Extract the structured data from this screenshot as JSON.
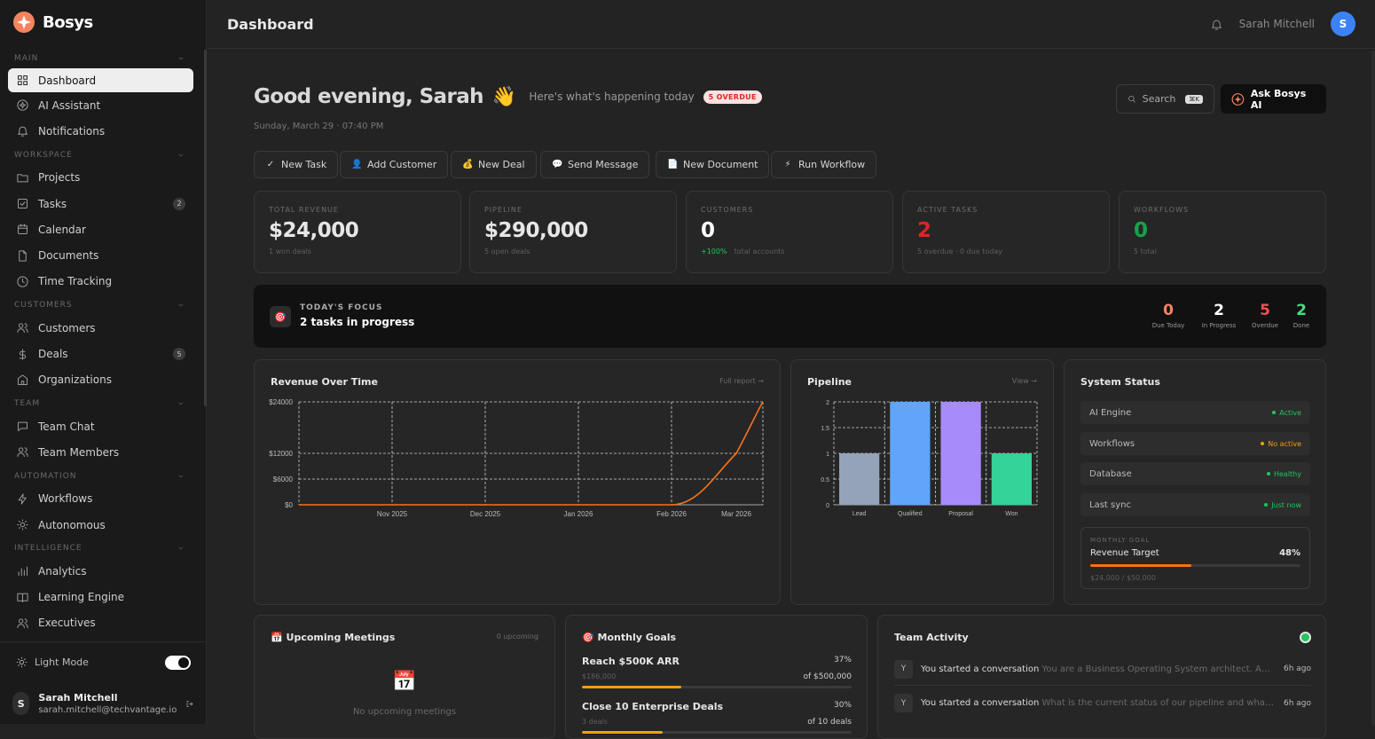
{
  "app": {
    "name": "Bosys"
  },
  "sidebar": {
    "sections": [
      {
        "label": "MAIN",
        "items": [
          {
            "label": "Dashboard",
            "icon": "grid-icon",
            "active": true
          },
          {
            "label": "AI Assistant",
            "icon": "ai-icon"
          },
          {
            "label": "Notifications",
            "icon": "bell-icon"
          }
        ]
      },
      {
        "label": "WORKSPACE",
        "items": [
          {
            "label": "Projects",
            "icon": "folder-icon"
          },
          {
            "label": "Tasks",
            "icon": "task-icon",
            "badge": "2"
          },
          {
            "label": "Calendar",
            "icon": "calendar-icon"
          },
          {
            "label": "Documents",
            "icon": "document-icon"
          },
          {
            "label": "Time Tracking",
            "icon": "clock-icon"
          }
        ]
      },
      {
        "label": "CUSTOMERS",
        "items": [
          {
            "label": "Customers",
            "icon": "users-icon"
          },
          {
            "label": "Deals",
            "icon": "dollar-icon",
            "badge": "5"
          },
          {
            "label": "Organizations",
            "icon": "building-icon"
          }
        ]
      },
      {
        "label": "TEAM",
        "items": [
          {
            "label": "Team Chat",
            "icon": "chat-icon"
          },
          {
            "label": "Team Members",
            "icon": "users-icon"
          }
        ]
      },
      {
        "label": "AUTOMATION",
        "items": [
          {
            "label": "Workflows",
            "icon": "bolt-icon"
          },
          {
            "label": "Autonomous",
            "icon": "sun-icon"
          }
        ]
      },
      {
        "label": "INTELLIGENCE",
        "items": [
          {
            "label": "Analytics",
            "icon": "chart-icon"
          },
          {
            "label": "Learning Engine",
            "icon": "book-icon"
          },
          {
            "label": "Executives",
            "icon": "users-icon"
          }
        ]
      }
    ],
    "light_mode_label": "Light Mode",
    "user": {
      "initial": "S",
      "name": "Sarah Mitchell",
      "email": "sarah.mitchell@techvantage.io"
    }
  },
  "header": {
    "title": "Dashboard",
    "user_name": "Sarah Mitchell",
    "avatar_initial": "S"
  },
  "greeting": {
    "title": "Good evening, Sarah",
    "emoji": "👋",
    "subtitle": "Here's what's happening today",
    "overdue_pill": "5 OVERDUE",
    "date": "Sunday, March 29 · 07:40 PM"
  },
  "search": {
    "label": "Search",
    "shortcut": "⌘K"
  },
  "ask_ai": {
    "label": "Ask Bosys AI"
  },
  "quick_actions": [
    {
      "label": "New Task",
      "glyph": "✓"
    },
    {
      "label": "Add Customer",
      "glyph": "👤"
    },
    {
      "label": "New Deal",
      "glyph": "💰"
    },
    {
      "label": "Send Message",
      "glyph": "💬"
    },
    {
      "label": "New Document",
      "glyph": "📄"
    },
    {
      "label": "Run Workflow",
      "glyph": "⚡"
    }
  ],
  "stats": [
    {
      "label": "TOTAL REVENUE",
      "value": "$24,000",
      "sub": "1 won deals",
      "color": "#e6e6e6"
    },
    {
      "label": "PIPELINE",
      "value": "$290,000",
      "sub": "5 open deals",
      "color": "#e6e6e6"
    },
    {
      "label": "CUSTOMERS",
      "value": "0",
      "delta": "+100%",
      "sub": "total accounts",
      "color": "#ffffff"
    },
    {
      "label": "ACTIVE TASKS",
      "value": "2",
      "sub": "5 overdue · 0 due today",
      "color": "#dc2626"
    },
    {
      "label": "WORKFLOWS",
      "value": "0",
      "sub": "5 total",
      "color": "#16a34a"
    }
  ],
  "focus": {
    "label": "TODAY'S FOCUS",
    "title": "2 tasks in progress",
    "stats": [
      {
        "value": "0",
        "label": "Due Today",
        "color": "#f4845f"
      },
      {
        "value": "2",
        "label": "In Progress",
        "color": "#ffffff"
      },
      {
        "value": "5",
        "label": "Overdue",
        "color": "#f05252"
      },
      {
        "value": "2",
        "label": "Done",
        "color": "#4ade80"
      }
    ]
  },
  "revenue_card": {
    "title": "Revenue Over Time",
    "link": "Full report →"
  },
  "pipeline_card": {
    "title": "Pipeline",
    "link": "View →"
  },
  "chart_data": [
    {
      "type": "line",
      "x_ticks": [
        "Nov 2025",
        "Dec 2025",
        "Jan 2026",
        "Feb 2026",
        "Mar 2026"
      ],
      "y_ticks": [
        "$0",
        "$6000",
        "$12000",
        "$24000"
      ],
      "ylim": [
        0,
        24000
      ],
      "series": [
        {
          "color": "#f97316",
          "points": [
            [
              "Oct 2025",
              0
            ],
            [
              "Nov 2025",
              0
            ],
            [
              "Dec 2025",
              0
            ],
            [
              "Jan 2026",
              0
            ],
            [
              "Feb 2026",
              0
            ],
            [
              "Mar 2026",
              12000
            ],
            [
              "Mar 29 2026",
              24000
            ]
          ]
        }
      ],
      "grid": true
    },
    {
      "type": "bar",
      "categories": [
        "Lead",
        "Qualified",
        "Proposal",
        "Won"
      ],
      "values": [
        1,
        2,
        2,
        1
      ],
      "colors": [
        "#94a3b8",
        "#60a5fa",
        "#a78bfa",
        "#34d399"
      ],
      "y_ticks": [
        "0",
        "0.5",
        "1",
        "1.5",
        "2"
      ],
      "ylim": [
        0,
        2
      ],
      "grid": true
    }
  ],
  "system_status": {
    "title": "System Status",
    "rows": [
      {
        "label": "AI Engine",
        "status": "Active",
        "color": "#22c55e"
      },
      {
        "label": "Workflows",
        "status": "No active",
        "color": "#f59e0b"
      },
      {
        "label": "Database",
        "status": "Healthy",
        "color": "#22c55e"
      },
      {
        "label": "Last sync",
        "status": "Just now",
        "color": "#22c55e"
      }
    ],
    "goal": {
      "label": "MONTHLY GOAL",
      "title": "Revenue Target",
      "percent": "48%",
      "progress": 0.48,
      "sub": "$24,000 / $50,000"
    }
  },
  "meetings": {
    "title": "Upcoming Meetings",
    "icon": "📅",
    "count": "0 upcoming",
    "empty_icon": "📅",
    "empty": "No upcoming meetings"
  },
  "monthly_goals": {
    "title": "Monthly Goals",
    "icon": "🎯",
    "items": [
      {
        "title": "Reach $500K ARR",
        "percent": "37%",
        "current": "$186,000",
        "target": "of $500,000",
        "progress": 0.37
      },
      {
        "title": "Close 10 Enterprise Deals",
        "percent": "30%",
        "current": "3 deals",
        "target": "of 10 deals",
        "progress": 0.3
      }
    ]
  },
  "team_activity": {
    "title": "Team Activity",
    "items": [
      {
        "avatar": "Y",
        "action": "You started a conversation",
        "detail": "You are a Business Operating System architect. Analyze the current state",
        "time": "6h ago"
      },
      {
        "avatar": "Y",
        "action": "You started a conversation",
        "detail": "What is the current status of our pipeline and what should we focus on",
        "time": "6h ago"
      }
    ]
  }
}
